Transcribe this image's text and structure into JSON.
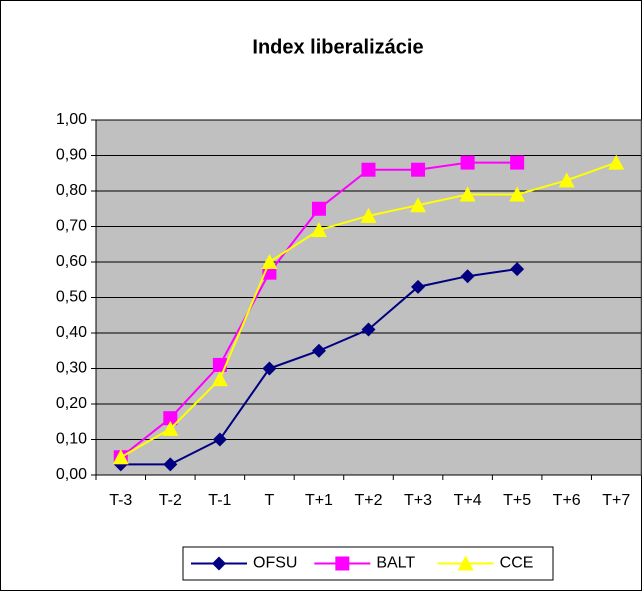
{
  "chart_data": {
    "type": "line",
    "title": "Index liberalizácie",
    "categories": [
      "T-3",
      "T-2",
      "T-1",
      "T",
      "T+1",
      "T+2",
      "T+3",
      "T+4",
      "T+5",
      "T+6",
      "T+7"
    ],
    "series": [
      {
        "name": "OFSU",
        "color": "#000080",
        "marker": "diamond",
        "values": [
          0.03,
          0.03,
          0.1,
          0.3,
          0.35,
          0.41,
          0.53,
          0.56,
          0.58,
          null,
          null
        ]
      },
      {
        "name": "BALT",
        "color": "#ff00ff",
        "marker": "square",
        "values": [
          0.05,
          0.16,
          0.31,
          0.57,
          0.75,
          0.86,
          0.86,
          0.88,
          0.88,
          null,
          null
        ]
      },
      {
        "name": "CCE",
        "color": "#ffff00",
        "marker": "triangle",
        "values": [
          0.05,
          0.13,
          0.27,
          0.6,
          0.69,
          0.73,
          0.76,
          0.79,
          0.79,
          0.83,
          0.88
        ]
      }
    ],
    "ylim": [
      0,
      1
    ],
    "yticks": [
      {
        "value": 0,
        "label": "0,00"
      },
      {
        "value": 0.1,
        "label": "0,10"
      },
      {
        "value": 0.2,
        "label": "0,20"
      },
      {
        "value": 0.3,
        "label": "0,30"
      },
      {
        "value": 0.4,
        "label": "0,40"
      },
      {
        "value": 0.5,
        "label": "0,50"
      },
      {
        "value": 0.6,
        "label": "0,60"
      },
      {
        "value": 0.7,
        "label": "0,70"
      },
      {
        "value": 0.8,
        "label": "0,80"
      },
      {
        "value": 0.9,
        "label": "0,90"
      },
      {
        "value": 1,
        "label": "1,00"
      }
    ],
    "grid": true,
    "legend": "bottom",
    "plot_background": "#c0c0c0"
  }
}
